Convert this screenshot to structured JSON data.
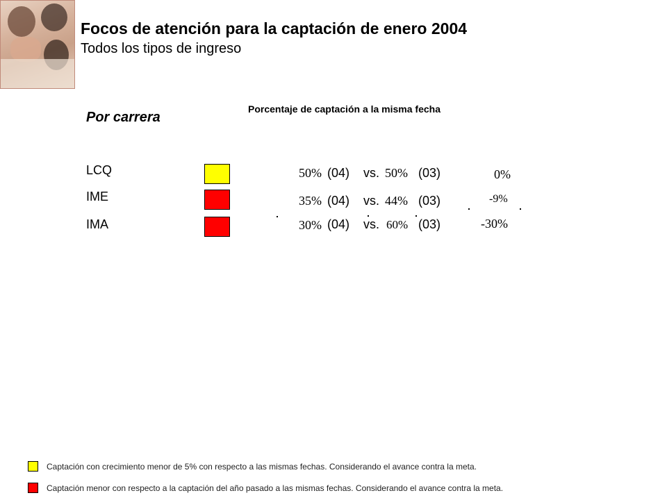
{
  "header": {
    "title": "Focos de atención para la captación de enero 2004",
    "subtitle": "Todos los tipos de ingreso"
  },
  "section_title": "Por carrera",
  "column_header": "Porcentaje de captación a la misma fecha",
  "rows": [
    {
      "label": "LCQ",
      "status_color": "#ffff00",
      "pct04": "50%",
      "tag04": "(04)",
      "vs": "vs.",
      "pct03": "50%",
      "tag03": "(03)",
      "diff": "0%"
    },
    {
      "label": "IME",
      "status_color": "#ff0000",
      "pct04": "35%",
      "tag04": "(04)",
      "vs": "vs.",
      "pct03": "44%",
      "tag03": "(03)",
      "diff": "-9%"
    },
    {
      "label": "IMA",
      "status_color": "#ff0000",
      "pct04": "30%",
      "tag04": "(04)",
      "vs": "vs.",
      "pct03": "60%",
      "tag03": "(03)",
      "diff": "-30%"
    }
  ],
  "legend": [
    {
      "color": "#ffff00",
      "text": "Captación con crecimiento menor de 5% con respecto a las mismas fechas. Considerando el avance contra la meta."
    },
    {
      "color": "#ff0000",
      "text": "Captación menor con respecto a la captación del año pasado a las mismas fechas. Considerando el avance contra la meta."
    }
  ]
}
